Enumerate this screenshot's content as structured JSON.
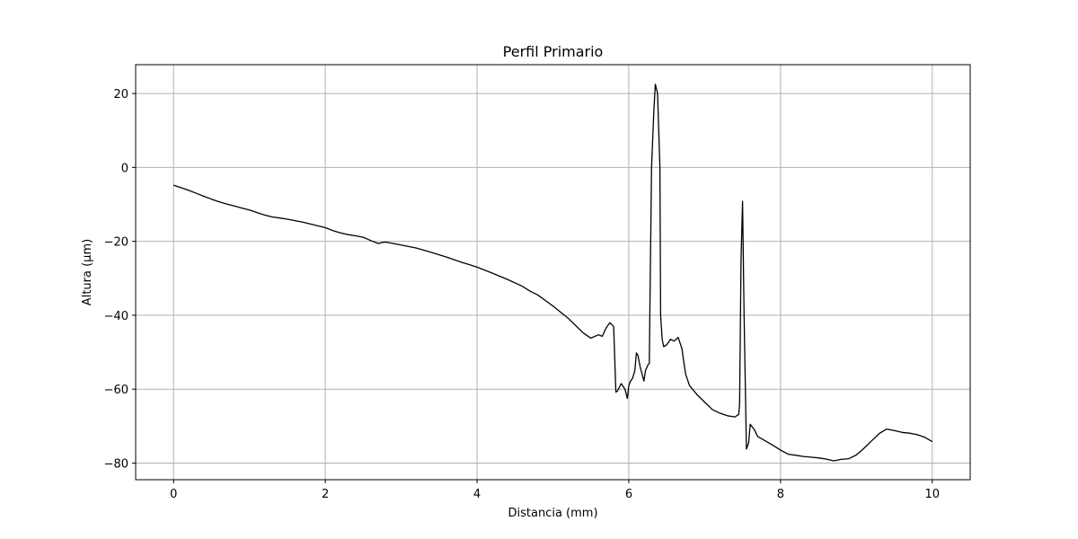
{
  "chart_data": {
    "type": "line",
    "title": "Perfil Primario",
    "xlabel": "Distancia (mm)",
    "ylabel": "Altura (µm)",
    "xlim": [
      -0.5,
      10.5
    ],
    "ylim": [
      -84.5,
      27.8
    ],
    "x_ticks": [
      0,
      2,
      4,
      6,
      8,
      10
    ],
    "x_tick_labels": [
      "0",
      "2",
      "4",
      "6",
      "8",
      "10"
    ],
    "y_ticks": [
      20,
      0,
      -20,
      -40,
      -60,
      -80
    ],
    "y_tick_labels": [
      "20",
      "0",
      "−20",
      "−40",
      "−60",
      "−80"
    ],
    "grid": true,
    "line_color": "#000000",
    "grid_color": "#b0b0b0",
    "series": [
      {
        "x": [
          0.0,
          0.1,
          0.2,
          0.3,
          0.4,
          0.5,
          0.6,
          0.7,
          0.8,
          0.9,
          1.0,
          1.1,
          1.2,
          1.3,
          1.4,
          1.5,
          1.6,
          1.7,
          1.8,
          1.9,
          2.0,
          2.1,
          2.2,
          2.3,
          2.4,
          2.5,
          2.6,
          2.7,
          2.75,
          2.8,
          2.9,
          3.0,
          3.2,
          3.4,
          3.6,
          3.8,
          3.9,
          4.0,
          4.2,
          4.4,
          4.6,
          4.7,
          4.8,
          5.0,
          5.2,
          5.3,
          5.4,
          5.5,
          5.6,
          5.65,
          5.7,
          5.75,
          5.8,
          5.83,
          5.85,
          5.9,
          5.95,
          5.98,
          6.0,
          6.02,
          6.05,
          6.08,
          6.1,
          6.12,
          6.15,
          6.2,
          6.22,
          6.25,
          6.27,
          6.28,
          6.3,
          6.33,
          6.35,
          6.38,
          6.41,
          6.42,
          6.44,
          6.46,
          6.5,
          6.55,
          6.6,
          6.65,
          6.7,
          6.72,
          6.75,
          6.8,
          6.9,
          7.0,
          7.1,
          7.2,
          7.3,
          7.4,
          7.45,
          7.46,
          7.48,
          7.5,
          7.52,
          7.55,
          7.58,
          7.6,
          7.65,
          7.7,
          7.8,
          7.9,
          8.0,
          8.1,
          8.2,
          8.3,
          8.4,
          8.5,
          8.6,
          8.7,
          8.8,
          8.9,
          9.0,
          9.1,
          9.2,
          9.3,
          9.4,
          9.5,
          9.6,
          9.7,
          9.8,
          9.9,
          10.0
        ],
        "y": [
          -4.8,
          -5.5,
          -6.2,
          -7.0,
          -7.8,
          -8.6,
          -9.3,
          -9.9,
          -10.4,
          -11.0,
          -11.5,
          -12.2,
          -12.9,
          -13.4,
          -13.7,
          -14.0,
          -14.4,
          -14.8,
          -15.3,
          -15.8,
          -16.3,
          -17.1,
          -17.7,
          -18.2,
          -18.5,
          -18.9,
          -19.8,
          -20.6,
          -20.3,
          -20.2,
          -20.6,
          -21.0,
          -21.8,
          -23.0,
          -24.3,
          -25.7,
          -26.3,
          -27.0,
          -28.6,
          -30.3,
          -32.2,
          -33.5,
          -34.5,
          -37.5,
          -40.8,
          -42.8,
          -44.8,
          -46.2,
          -45.3,
          -45.7,
          -43.5,
          -42.0,
          -43.0,
          -60.8,
          -60.5,
          -58.5,
          -60.0,
          -62.5,
          -59.0,
          -58.0,
          -57.0,
          -55.0,
          -50.2,
          -50.8,
          -54.0,
          -57.8,
          -55.0,
          -53.5,
          -53.0,
          -35.0,
          0.0,
          15.0,
          22.5,
          20.0,
          0.0,
          -40.0,
          -46.5,
          -48.5,
          -48.0,
          -46.5,
          -47.0,
          -46.0,
          -49.0,
          -52.0,
          -56.0,
          -59.0,
          -61.5,
          -63.5,
          -65.5,
          -66.5,
          -67.2,
          -67.5,
          -66.8,
          -64.0,
          -25.0,
          -9.2,
          -40.0,
          -76.2,
          -74.5,
          -69.5,
          -70.8,
          -72.8,
          -74.0,
          -75.2,
          -76.5,
          -77.6,
          -77.9,
          -78.2,
          -78.4,
          -78.6,
          -78.9,
          -79.4,
          -79.0,
          -78.8,
          -77.8,
          -76.0,
          -74.0,
          -72.0,
          -70.8,
          -71.2,
          -71.7,
          -71.9,
          -72.3,
          -73.0,
          -74.2
        ]
      }
    ]
  }
}
